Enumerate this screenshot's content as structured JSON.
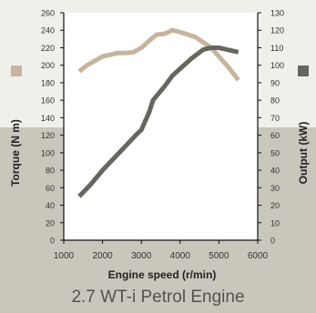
{
  "colors": {
    "torque": "#c6b49f",
    "output": "#66665f",
    "axis": "#111111",
    "plot_bg": "#ffffff"
  },
  "chart_data": {
    "type": "line",
    "title": "",
    "subtitle": "2.7 WT-i Petrol Engine",
    "xlabel": "Engine speed (r/min)",
    "ylabel_left": "Torque (N m)",
    "ylabel_right": "Output (kW)",
    "xlim": [
      1000,
      6000
    ],
    "ylim_left": [
      0,
      260
    ],
    "ylim_right": [
      0,
      130
    ],
    "x_ticks": [
      1000,
      2000,
      3000,
      4000,
      5000,
      6000
    ],
    "y_ticks_left": [
      0,
      20,
      40,
      60,
      80,
      100,
      120,
      140,
      160,
      180,
      200,
      220,
      240,
      260
    ],
    "y_ticks_right": [
      0,
      10,
      20,
      30,
      40,
      50,
      60,
      70,
      80,
      90,
      100,
      110,
      120,
      130
    ],
    "grid": false,
    "series": [
      {
        "name": "Torque",
        "axis": "left",
        "x": [
          1400,
          1600,
          1800,
          2000,
          2200,
          2400,
          2600,
          2800,
          3000,
          3200,
          3400,
          3600,
          3800,
          4000,
          4200,
          4400,
          4600,
          4800,
          5000,
          5200,
          5400,
          5500
        ],
        "y": [
          193,
          200,
          205,
          210,
          212,
          214,
          214,
          215,
          220,
          228,
          235,
          236,
          240,
          238,
          235,
          232,
          226,
          220,
          210,
          200,
          189,
          183
        ]
      },
      {
        "name": "Output",
        "axis": "right",
        "x": [
          1400,
          1700,
          2000,
          2300,
          2600,
          2900,
          3000,
          3200,
          3300,
          3600,
          3800,
          4000,
          4300,
          4600,
          4800,
          5000,
          5200,
          5500
        ],
        "y": [
          25,
          32,
          40,
          47,
          54,
          61,
          63,
          73,
          80,
          88,
          94,
          98,
          104,
          109,
          110,
          110,
          109,
          107.5
        ]
      }
    ]
  }
}
